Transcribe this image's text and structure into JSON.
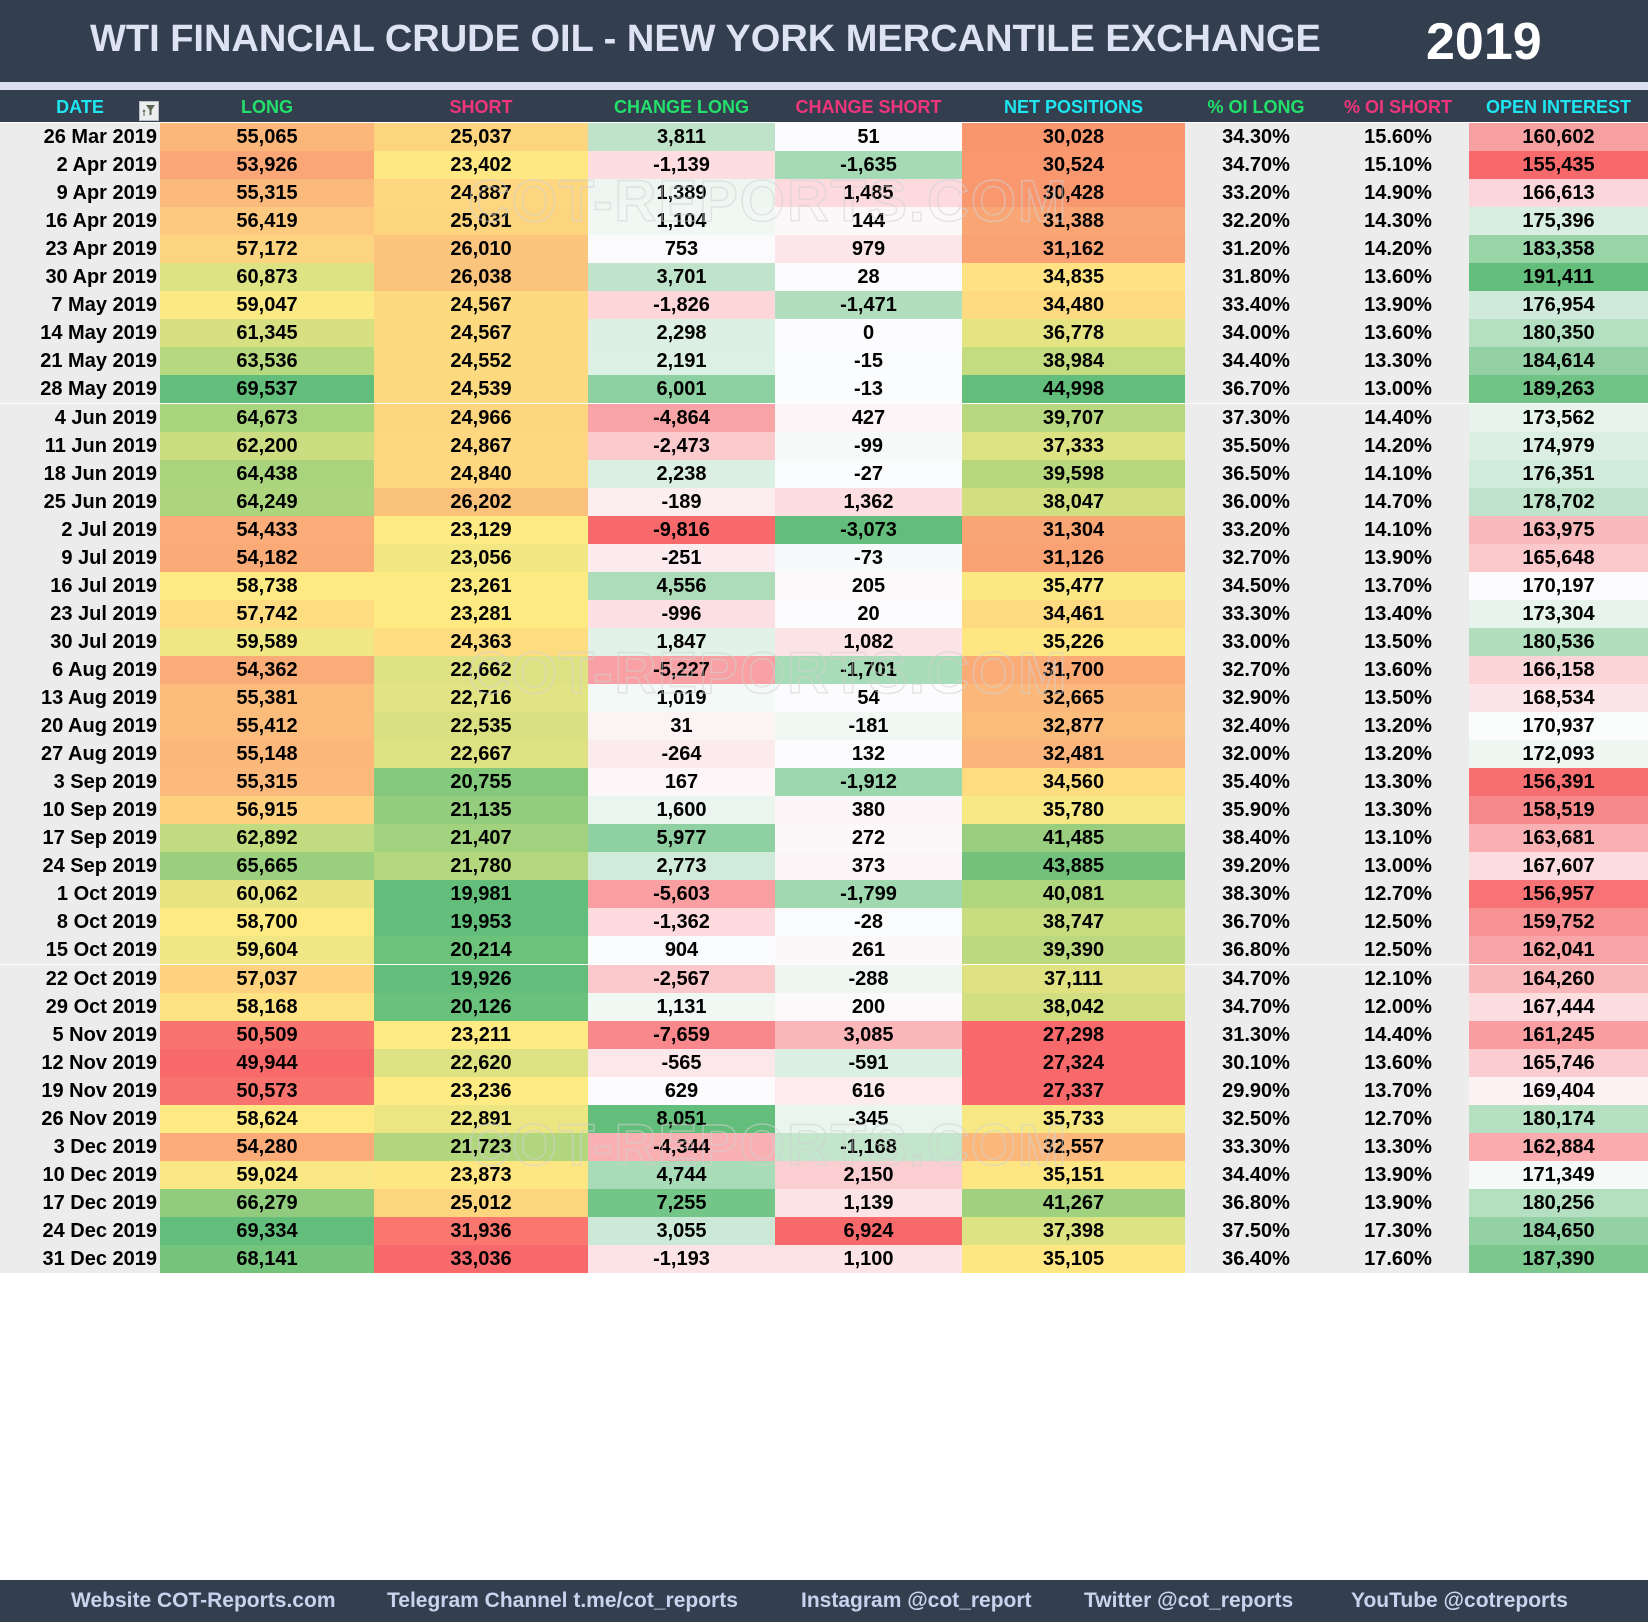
{
  "header": {
    "title": "WTI FINANCIAL CRUDE OIL - NEW YORK MERCANTILE EXCHANGE",
    "year": "2019"
  },
  "columns": [
    {
      "key": "date",
      "label": "DATE",
      "color": "#1ee6f0"
    },
    {
      "key": "long",
      "label": "LONG",
      "color": "#22e06a"
    },
    {
      "key": "short",
      "label": "SHORT",
      "color": "#f0357a"
    },
    {
      "key": "change_long",
      "label": "CHANGE LONG",
      "color": "#22e06a"
    },
    {
      "key": "change_short",
      "label": "CHANGE SHORT",
      "color": "#f0357a"
    },
    {
      "key": "net_positions",
      "label": "NET POSITIONS",
      "color": "#1ee6f0"
    },
    {
      "key": "pct_oi_long",
      "label": "% OI LONG",
      "color": "#22e06a"
    },
    {
      "key": "pct_oi_short",
      "label": "% OI SHORT",
      "color": "#f0357a"
    },
    {
      "key": "open_interest",
      "label": "OPEN INTEREST",
      "color": "#1ee6f0"
    }
  ],
  "filter_icon": "filter-funnel-icon",
  "watermark": "COT-REPORTS.COM",
  "rows": [
    {
      "date": "26 Mar 2019",
      "long": "55,065",
      "short": "25,037",
      "change_long": "3,811",
      "change_short": "51",
      "net_positions": "30,028",
      "pct_oi_long": "34.30%",
      "pct_oi_short": "15.60%",
      "open_interest": "160,602",
      "bg": [
        "#fbb77a",
        "#fdd57f",
        "#bfe3c9",
        "#fcfcfe",
        "#f9966e",
        "#f7a0a2"
      ]
    },
    {
      "date": "2 Apr 2019",
      "long": "53,926",
      "short": "23,402",
      "change_long": "-1,139",
      "change_short": "-1,635",
      "net_positions": "30,524",
      "pct_oi_long": "34.70%",
      "pct_oi_short": "15.10%",
      "open_interest": "155,435",
      "bg": [
        "#faa677",
        "#fee883",
        "#fddde0",
        "#a6dab5",
        "#f9986f",
        "#f8696b"
      ]
    },
    {
      "date": "9 Apr 2019",
      "long": "55,315",
      "short": "24,887",
      "change_long": "1,389",
      "change_short": "1,485",
      "net_positions": "30,428",
      "pct_oi_long": "33.20%",
      "pct_oi_short": "14.90%",
      "open_interest": "166,613",
      "bg": [
        "#fbba7b",
        "#fed780",
        "#edf6f1",
        "#fcdadd",
        "#f9976f",
        "#fbd6da"
      ]
    },
    {
      "date": "16 Apr 2019",
      "long": "56,419",
      "short": "25,031",
      "change_long": "1,104",
      "change_short": "144",
      "net_positions": "31,388",
      "pct_oi_long": "32.20%",
      "pct_oi_short": "14.30%",
      "open_interest": "175,396",
      "bg": [
        "#fdc97e",
        "#fdd57f",
        "#f1f8f4",
        "#fcf8fa",
        "#faa674",
        "#d8eee0"
      ]
    },
    {
      "date": "23 Apr 2019",
      "long": "57,172",
      "short": "26,010",
      "change_long": "753",
      "change_short": "979",
      "net_positions": "31,162",
      "pct_oi_long": "31.20%",
      "pct_oi_short": "14.20%",
      "open_interest": "183,358",
      "bg": [
        "#fdd47f",
        "#fbc57d",
        "#fbfbfd",
        "#fce6e9",
        "#faa273",
        "#99d4a7"
      ]
    },
    {
      "date": "30 Apr 2019",
      "long": "60,873",
      "short": "26,038",
      "change_long": "3,701",
      "change_short": "28",
      "net_positions": "34,835",
      "pct_oi_long": "31.80%",
      "pct_oi_short": "13.60%",
      "open_interest": "191,411",
      "bg": [
        "#dde282",
        "#fbc47d",
        "#c0e4cb",
        "#fcfcfe",
        "#fee283",
        "#63be7b"
      ]
    },
    {
      "date": "7 May 2019",
      "long": "59,047",
      "short": "24,567",
      "change_long": "-1,826",
      "change_short": "-1,471",
      "net_positions": "34,480",
      "pct_oi_long": "33.40%",
      "pct_oi_short": "13.90%",
      "open_interest": "176,954",
      "bg": [
        "#fbe983",
        "#fdda80",
        "#fcd6d9",
        "#b1dfbe",
        "#fedb80",
        "#cfeadb"
      ]
    },
    {
      "date": "14 May 2019",
      "long": "61,345",
      "short": "24,567",
      "change_long": "2,298",
      "change_short": "0",
      "net_positions": "36,778",
      "pct_oi_long": "34.00%",
      "pct_oi_short": "13.60%",
      "open_interest": "180,350",
      "bg": [
        "#d7e081",
        "#fdda80",
        "#dbefe2",
        "#fcfcfe",
        "#e5e483",
        "#b4e0c1"
      ]
    },
    {
      "date": "21 May 2019",
      "long": "63,536",
      "short": "24,552",
      "change_long": "2,191",
      "change_short": "-15",
      "net_positions": "38,984",
      "pct_oi_long": "34.40%",
      "pct_oi_short": "13.30%",
      "open_interest": "184,614",
      "bg": [
        "#b6d87e",
        "#fdda80",
        "#ddf0e4",
        "#fbfcfd",
        "#c4dc80",
        "#93d1a4"
      ]
    },
    {
      "date": "28 May 2019",
      "long": "69,537",
      "short": "24,539",
      "change_long": "6,001",
      "change_short": "-13",
      "net_positions": "44,998",
      "pct_oi_long": "36.70%",
      "pct_oi_short": "13.00%",
      "open_interest": "189,263",
      "bg": [
        "#63be7b",
        "#fdda80",
        "#8dd0a1",
        "#fbfcfd",
        "#63be7b",
        "#70c384"
      ]
    },
    {
      "date": "4 Jun 2019",
      "long": "64,673",
      "short": "24,966",
      "change_long": "-4,864",
      "change_short": "427",
      "net_positions": "39,707",
      "pct_oi_long": "37.30%",
      "pct_oi_short": "14.40%",
      "open_interest": "173,562",
      "bg": [
        "#a8d47d",
        "#fdd57f",
        "#f8a4a7",
        "#fcf4f6",
        "#b7d87e",
        "#e6f4ec"
      ]
    },
    {
      "date": "11 Jun 2019",
      "long": "62,200",
      "short": "24,867",
      "change_long": "-2,473",
      "change_short": "-99",
      "net_positions": "37,333",
      "pct_oi_long": "35.50%",
      "pct_oi_short": "14.20%",
      "open_interest": "174,979",
      "bg": [
        "#cbdd80",
        "#fed780",
        "#fbcacd",
        "#f5f9f7",
        "#dde282",
        "#dbefe3"
      ]
    },
    {
      "date": "18 Jun 2019",
      "long": "64,438",
      "short": "24,840",
      "change_long": "2,238",
      "change_short": "-27",
      "net_positions": "39,598",
      "pct_oi_long": "36.50%",
      "pct_oi_short": "14.10%",
      "open_interest": "176,351",
      "bg": [
        "#a9d47d",
        "#fed780",
        "#dcefe3",
        "#fbfcfd",
        "#b8d87e",
        "#d2ecdc"
      ]
    },
    {
      "date": "25 Jun 2019",
      "long": "64,249",
      "short": "26,202",
      "change_long": "-189",
      "change_short": "1,362",
      "net_positions": "38,047",
      "pct_oi_long": "36.00%",
      "pct_oi_short": "14.70%",
      "open_interest": "178,702",
      "bg": [
        "#acd57d",
        "#fbc27c",
        "#fcedef",
        "#fcdee1",
        "#d2df81",
        "#c0e4cb"
      ]
    },
    {
      "date": "2 Jul 2019",
      "long": "54,433",
      "short": "23,129",
      "change_long": "-9,816",
      "change_short": "-3,073",
      "net_positions": "31,304",
      "pct_oi_long": "33.20%",
      "pct_oi_short": "14.10%",
      "open_interest": "163,975",
      "bg": [
        "#faad78",
        "#feeb84",
        "#f8696b",
        "#63be7b",
        "#faa574",
        "#f9babd"
      ]
    },
    {
      "date": "9 Jul 2019",
      "long": "54,182",
      "short": "23,056",
      "change_long": "-251",
      "change_short": "-73",
      "net_positions": "31,126",
      "pct_oi_long": "32.70%",
      "pct_oi_short": "13.90%",
      "open_interest": "165,648",
      "bg": [
        "#faaa77",
        "#f3e783",
        "#fcebee",
        "#f7fafa",
        "#faa273",
        "#fbc9cc"
      ]
    },
    {
      "date": "16 Jul 2019",
      "long": "58,738",
      "short": "23,261",
      "change_long": "4,556",
      "change_short": "205",
      "net_positions": "35,477",
      "pct_oi_long": "34.50%",
      "pct_oi_short": "13.70%",
      "open_interest": "170,197",
      "bg": [
        "#feea83",
        "#feea83",
        "#acdcba",
        "#fcf9fb",
        "#fae983",
        "#fcfcfe"
      ]
    },
    {
      "date": "23 Jul 2019",
      "long": "57,742",
      "short": "23,281",
      "change_long": "-996",
      "change_short": "20",
      "net_positions": "34,461",
      "pct_oi_long": "33.30%",
      "pct_oi_short": "13.40%",
      "open_interest": "173,304",
      "bg": [
        "#fedd81",
        "#feea83",
        "#fcdfe2",
        "#fcfcfe",
        "#fedb80",
        "#e7f4ec"
      ]
    },
    {
      "date": "30 Jul 2019",
      "long": "59,589",
      "short": "24,363",
      "change_long": "1,847",
      "change_short": "1,082",
      "net_positions": "35,226",
      "pct_oi_long": "33.00%",
      "pct_oi_short": "13.50%",
      "open_interest": "180,536",
      "bg": [
        "#f0e683",
        "#fedd81",
        "#e2f2e8",
        "#fce3e6",
        "#fee683",
        "#b1dfbe"
      ]
    },
    {
      "date": "6 Aug 2019",
      "long": "54,362",
      "short": "22,662",
      "change_long": "-5,227",
      "change_short": "-1,701",
      "net_positions": "31,700",
      "pct_oi_long": "32.70%",
      "pct_oi_short": "13.60%",
      "open_interest": "166,158",
      "bg": [
        "#faac78",
        "#dfe282",
        "#f8a0a3",
        "#a8dbb7",
        "#faab76",
        "#fbd4d7"
      ]
    },
    {
      "date": "13 Aug 2019",
      "long": "55,381",
      "short": "22,716",
      "change_long": "1,019",
      "change_short": "54",
      "net_positions": "32,665",
      "pct_oi_long": "32.90%",
      "pct_oi_short": "13.50%",
      "open_interest": "168,534",
      "bg": [
        "#fbbb7b",
        "#e2e382",
        "#f3f9f6",
        "#fcfcfe",
        "#fbb87a",
        "#fce5e8"
      ]
    },
    {
      "date": "20 Aug 2019",
      "long": "55,412",
      "short": "22,535",
      "change_long": "31",
      "change_short": "-181",
      "net_positions": "32,877",
      "pct_oi_long": "32.40%",
      "pct_oi_short": "13.20%",
      "open_interest": "170,937",
      "bg": [
        "#fbbb7b",
        "#d8e081",
        "#fcf3f5",
        "#f1f8f4",
        "#fbbb7b",
        "#fafcfc"
      ]
    },
    {
      "date": "27 Aug 2019",
      "long": "55,148",
      "short": "22,667",
      "change_long": "-264",
      "change_short": "132",
      "net_positions": "32,481",
      "pct_oi_long": "32.00%",
      "pct_oi_short": "13.20%",
      "open_interest": "172,093",
      "bg": [
        "#fbb87a",
        "#dfe282",
        "#fcebed",
        "#fcfcfe",
        "#fbb57a",
        "#eef7f2"
      ]
    },
    {
      "date": "3 Sep 2019",
      "long": "55,315",
      "short": "20,755",
      "change_long": "167",
      "change_short": "-1,912",
      "net_positions": "34,560",
      "pct_oi_long": "35.40%",
      "pct_oi_short": "13.30%",
      "open_interest": "156,391",
      "bg": [
        "#fbba7b",
        "#85c97d",
        "#fcf6f8",
        "#9cd7ad",
        "#fedd81",
        "#f86f71"
      ]
    },
    {
      "date": "10 Sep 2019",
      "long": "56,915",
      "short": "21,135",
      "change_long": "1,600",
      "change_short": "380",
      "net_positions": "35,780",
      "pct_oi_long": "35.90%",
      "pct_oi_short": "13.30%",
      "open_interest": "158,519",
      "bg": [
        "#fed17f",
        "#94cd7e",
        "#eaf5ef",
        "#fcf5f7",
        "#f6e883",
        "#f8898b"
      ]
    },
    {
      "date": "17 Sep 2019",
      "long": "62,892",
      "short": "21,407",
      "change_long": "5,977",
      "change_short": "272",
      "net_positions": "41,485",
      "pct_oi_long": "38.40%",
      "pct_oi_short": "13.10%",
      "open_interest": "163,681",
      "bg": [
        "#c0db80",
        "#a2d27d",
        "#8ed0a1",
        "#fcf8fa",
        "#98ce7e",
        "#f9b0b3"
      ]
    },
    {
      "date": "24 Sep 2019",
      "long": "65,665",
      "short": "21,780",
      "change_long": "2,773",
      "change_short": "373",
      "net_positions": "43,885",
      "pct_oi_long": "39.20%",
      "pct_oi_short": "13.00%",
      "open_interest": "167,607",
      "bg": [
        "#9acf7e",
        "#b4d77e",
        "#d1ebdb",
        "#fcf5f7",
        "#72c27c",
        "#fcdde0"
      ]
    },
    {
      "date": "1 Oct 2019",
      "long": "60,062",
      "short": "19,981",
      "change_long": "-5,603",
      "change_short": "-1,799",
      "net_positions": "40,081",
      "pct_oi_long": "38.30%",
      "pct_oi_short": "12.70%",
      "open_interest": "156,957",
      "bg": [
        "#e8e482",
        "#63be7b",
        "#f99ea1",
        "#a0d8b0",
        "#b1d77e",
        "#f87375"
      ]
    },
    {
      "date": "8 Oct 2019",
      "long": "58,700",
      "short": "19,953",
      "change_long": "-1,362",
      "change_short": "-28",
      "net_positions": "38,747",
      "pct_oi_long": "36.70%",
      "pct_oi_short": "12.50%",
      "open_interest": "159,752",
      "bg": [
        "#feea83",
        "#63be7b",
        "#fcdadd",
        "#fafbfc",
        "#c8dc80",
        "#f89194"
      ]
    },
    {
      "date": "15 Oct 2019",
      "long": "59,604",
      "short": "20,214",
      "change_long": "904",
      "change_short": "261",
      "net_positions": "39,390",
      "pct_oi_long": "36.80%",
      "pct_oi_short": "12.50%",
      "open_interest": "162,041",
      "bg": [
        "#f0e683",
        "#6cc27b",
        "#f9fbfc",
        "#fcf8fa",
        "#bcd97f",
        "#f9a4a6"
      ]
    },
    {
      "date": "22 Oct 2019",
      "long": "57,037",
      "short": "19,926",
      "change_long": "-2,567",
      "change_short": "-288",
      "net_positions": "37,111",
      "pct_oi_long": "34.70%",
      "pct_oi_short": "12.10%",
      "open_interest": "164,260",
      "bg": [
        "#fed27f",
        "#63be7b",
        "#fbc8cb",
        "#edf6f1",
        "#e0e282",
        "#fab7ba"
      ]
    },
    {
      "date": "29 Oct 2019",
      "long": "58,168",
      "short": "20,126",
      "change_long": "1,131",
      "change_short": "200",
      "net_positions": "38,042",
      "pct_oi_long": "34.70%",
      "pct_oi_short": "12.00%",
      "open_interest": "167,444",
      "bg": [
        "#fee382",
        "#69c17b",
        "#f1f8f4",
        "#fcf9fb",
        "#d2df81",
        "#fcdde0"
      ]
    },
    {
      "date": "5 Nov 2019",
      "long": "50,509",
      "short": "23,211",
      "change_long": "-7,659",
      "change_short": "3,085",
      "net_positions": "27,298",
      "pct_oi_long": "31.30%",
      "pct_oi_short": "14.40%",
      "open_interest": "161,245",
      "bg": [
        "#f8736e",
        "#feeb84",
        "#f8888b",
        "#fab6b8",
        "#f8696b",
        "#f99da0"
      ]
    },
    {
      "date": "12 Nov 2019",
      "long": "49,944",
      "short": "22,620",
      "change_long": "-565",
      "change_short": "-591",
      "net_positions": "27,324",
      "pct_oi_long": "30.10%",
      "pct_oi_short": "13.60%",
      "open_interest": "165,746",
      "bg": [
        "#f8696b",
        "#dde282",
        "#fce7ea",
        "#dcefe3",
        "#f8696b",
        "#fbcdd0"
      ]
    },
    {
      "date": "19 Nov 2019",
      "long": "50,573",
      "short": "23,236",
      "change_long": "629",
      "change_short": "616",
      "net_positions": "27,337",
      "pct_oi_long": "29.90%",
      "pct_oi_short": "13.70%",
      "open_interest": "169,404",
      "bg": [
        "#f8736e",
        "#feeb84",
        "#fcfcfe",
        "#fcecee",
        "#f8696b",
        "#fcf2f4"
      ]
    },
    {
      "date": "26 Nov 2019",
      "long": "58,624",
      "short": "22,891",
      "change_long": "8,051",
      "change_short": "-345",
      "net_positions": "35,733",
      "pct_oi_long": "32.50%",
      "pct_oi_short": "12.70%",
      "open_interest": "180,174",
      "bg": [
        "#fee983",
        "#ebe582",
        "#63be7b",
        "#e9f5ee",
        "#f7e883",
        "#b4e0c1"
      ]
    },
    {
      "date": "3 Dec 2019",
      "long": "54,280",
      "short": "21,723",
      "change_long": "-4,344",
      "change_short": "-1,168",
      "net_positions": "32,557",
      "pct_oi_long": "33.30%",
      "pct_oi_short": "13.30%",
      "open_interest": "162,884",
      "bg": [
        "#faab77",
        "#b2d67e",
        "#f9b0b3",
        "#c2e5cc",
        "#fbb87a",
        "#f9abae"
      ]
    },
    {
      "date": "10 Dec 2019",
      "long": "59,024",
      "short": "23,873",
      "change_long": "4,744",
      "change_short": "2,150",
      "net_positions": "35,151",
      "pct_oi_long": "34.40%",
      "pct_oi_short": "13.90%",
      "open_interest": "171,349",
      "bg": [
        "#f9e883",
        "#fee683",
        "#a8dbb7",
        "#fbcfd2",
        "#fee683",
        "#f5f9f8"
      ]
    },
    {
      "date": "17 Dec 2019",
      "long": "66,279",
      "short": "25,012",
      "change_long": "7,255",
      "change_short": "1,139",
      "net_positions": "41,267",
      "pct_oi_long": "36.80%",
      "pct_oi_short": "13.90%",
      "open_interest": "180,256",
      "bg": [
        "#91cc7e",
        "#fdd57f",
        "#73c588",
        "#fce3e6",
        "#9fd17e",
        "#b4e0c1"
      ]
    },
    {
      "date": "24 Dec 2019",
      "long": "69,334",
      "short": "31,936",
      "change_long": "3,055",
      "change_short": "6,924",
      "net_positions": "37,398",
      "pct_oi_long": "37.50%",
      "pct_oi_short": "17.30%",
      "open_interest": "184,650",
      "bg": [
        "#63be7b",
        "#f9776f",
        "#cce9d7",
        "#f8696b",
        "#dde282",
        "#93d1a4"
      ]
    },
    {
      "date": "31 Dec 2019",
      "long": "68,141",
      "short": "33,036",
      "change_long": "-1,193",
      "change_short": "1,100",
      "net_positions": "35,105",
      "pct_oi_long": "36.40%",
      "pct_oi_short": "17.60%",
      "open_interest": "187,390",
      "bg": [
        "#75c47c",
        "#f8696b",
        "#fce3e6",
        "#fce3e6",
        "#fee783",
        "#7cc88f"
      ]
    }
  ],
  "footer": {
    "website": "Website COT-Reports.com",
    "telegram": "Telegram Channel t.me/cot_reports",
    "instagram": "Instagram @cot_report",
    "twitter": "Twitter @cot_reports",
    "youtube": "YouTube @cotreports"
  },
  "colors": {
    "header_bg": "#333e4f",
    "title_text": "#dde3f2",
    "footer_text": "#c9d3ee",
    "neutral_cell": "#ececec",
    "scale_low": "#f8696b",
    "scale_mid": "#ffeb84",
    "scale_high": "#63be7b"
  }
}
